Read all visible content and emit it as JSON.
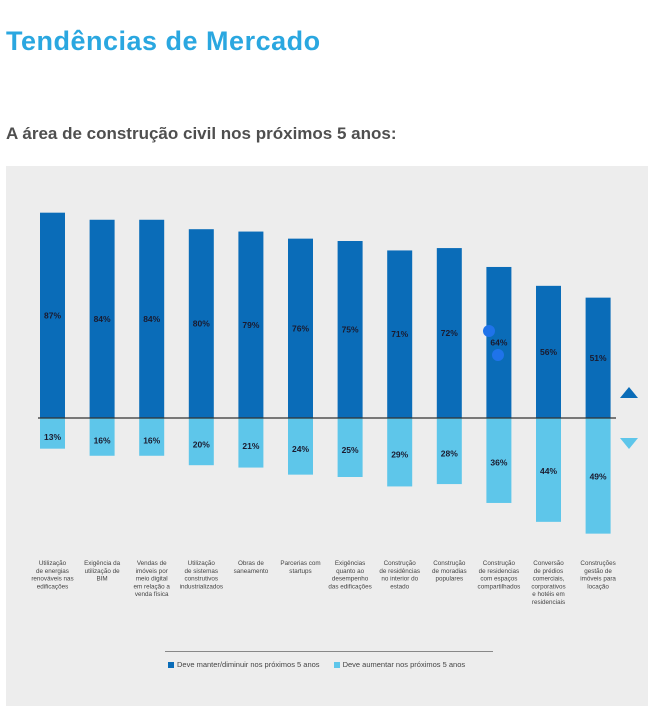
{
  "page": {
    "title": "Tendências de Mercado",
    "subtitle": "A área de construção civil nos próximos 5 anos:"
  },
  "colors": {
    "title": "#2aa7e0",
    "series_keep": "#0a6cb8",
    "series_increase": "#5ec6ea",
    "arrow_up": "#0a6cb8",
    "arrow_down": "#5ec6ea",
    "panel_bg": "#ededed"
  },
  "icons": {
    "up": "triangle-up-icon",
    "down": "triangle-down-icon"
  },
  "chart_data": {
    "type": "bar",
    "categories": [
      [
        "Utilização",
        "de energias",
        "renováveis nas",
        "edificações"
      ],
      [
        "Exigência da",
        "utilização de",
        "BIM"
      ],
      [
        "Vendas de",
        "imóveis por",
        "meio digital",
        "em relação a",
        "venda física"
      ],
      [
        "Utilização",
        "de sistemas",
        "construtivos",
        "industrializados"
      ],
      [
        "Obras de",
        "saneamento"
      ],
      [
        "Parcerias com",
        "startups"
      ],
      [
        "Exigências",
        "quanto ao",
        "desempenho",
        "das edificações"
      ],
      [
        "Construção",
        "de residências",
        "no interior do",
        "estado"
      ],
      [
        "Construção",
        "de moradias",
        "populares"
      ],
      [
        "Construção",
        "de residencias",
        "com espaços",
        "compartilhados"
      ],
      [
        "Conversão",
        "de prédios",
        "comerciais,",
        "corporativos",
        "e hotéis em",
        "residenciais"
      ],
      [
        "Construções",
        "gestão de",
        "imóveis para",
        "locação"
      ]
    ],
    "series": [
      {
        "name": "Deve manter/diminuir nos próximos 5 anos",
        "values": [
          87,
          84,
          84,
          80,
          79,
          76,
          75,
          71,
          72,
          64,
          56,
          51
        ],
        "labels": [
          "87%",
          "84%",
          "84%",
          "80%",
          "79%",
          "76%",
          "75%",
          "71%",
          "72%",
          "64%",
          "56%",
          "51%"
        ]
      },
      {
        "name": "Deve aumentar nos próximos 5 anos",
        "values": [
          13,
          16,
          16,
          20,
          21,
          24,
          25,
          29,
          28,
          36,
          44,
          49
        ],
        "labels": [
          "13%",
          "16%",
          "16%",
          "20%",
          "21%",
          "24%",
          "25%",
          "29%",
          "28%",
          "36%",
          "44%",
          "49%"
        ]
      }
    ],
    "legend_position": "bottom",
    "grid": false
  }
}
